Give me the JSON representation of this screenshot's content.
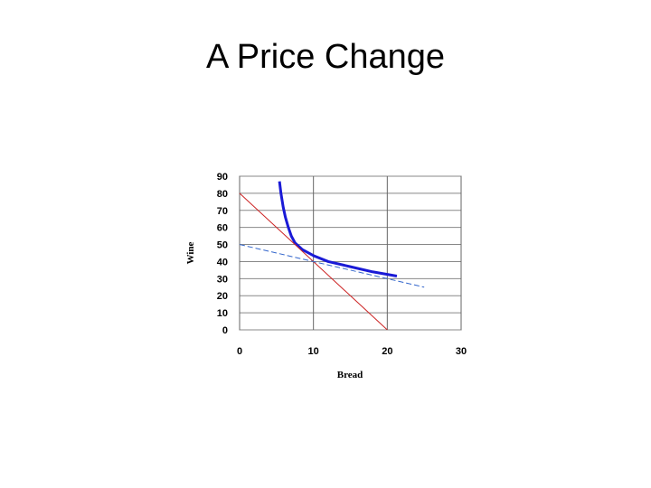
{
  "slide": {
    "title": "A Price Change"
  },
  "chart_data": {
    "type": "line",
    "title": "",
    "xlabel": "Bread",
    "ylabel": "Wine",
    "xlim": [
      0,
      30
    ],
    "ylim": [
      0,
      90
    ],
    "x_ticks": [
      0,
      10,
      20,
      30
    ],
    "y_ticks": [
      0,
      10,
      20,
      30,
      40,
      50,
      60,
      70,
      80,
      90
    ],
    "grid": true,
    "series": [
      {
        "style": "indifference-curve",
        "color": "#1a1ad6",
        "x": [
          5.4,
          5.6,
          5.9,
          6.2,
          6.6,
          7.0,
          7.5,
          8.5,
          10.0,
          12.0,
          15.0,
          18.0,
          21.3
        ],
        "y": [
          87,
          80,
          72,
          66,
          60,
          55,
          51,
          47,
          43.5,
          40,
          37,
          34,
          31.5
        ]
      },
      {
        "style": "budget-line-original",
        "color": "#cc2222",
        "x": [
          0,
          20
        ],
        "y": [
          80,
          0
        ]
      },
      {
        "style": "budget-line-new",
        "color": "#3366cc",
        "x": [
          0,
          25
        ],
        "y": [
          50,
          25
        ]
      }
    ]
  }
}
